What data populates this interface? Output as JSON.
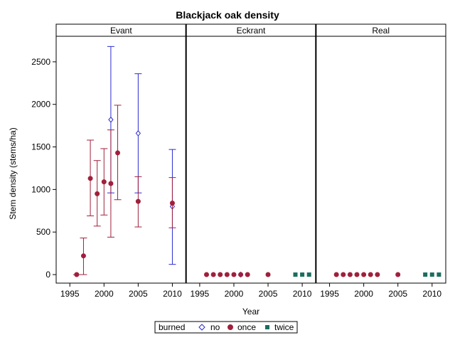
{
  "chart_data": {
    "type": "scatter",
    "title": "Blackjack oak density",
    "xlabel": "Year",
    "ylabel": "Stem density (stems/ha)",
    "xlim": [
      1993,
      2012
    ],
    "ylim": [
      -100,
      2800
    ],
    "x_ticks": [
      1995,
      2000,
      2005,
      2010
    ],
    "y_ticks": [
      0,
      500,
      1000,
      1500,
      2000,
      2500
    ],
    "grid": false,
    "legend_placement": "bottom-center",
    "legend_title": "burned",
    "panels": [
      "Evant",
      "Eckrant",
      "Real"
    ],
    "series": [
      {
        "name": "no",
        "marker": "diamond",
        "color": "#2b2bd1",
        "data": {
          "Evant": [
            {
              "x": 2001,
              "y": 1820,
              "low": 960,
              "high": 2680
            },
            {
              "x": 2005,
              "y": 1660,
              "low": 960,
              "high": 2360
            },
            {
              "x": 2010,
              "y": 800,
              "low": 120,
              "high": 1470
            }
          ],
          "Eckrant": [
            {
              "x": 2001,
              "y": 0
            }
          ],
          "Real": []
        }
      },
      {
        "name": "once",
        "marker": "circle",
        "color": "#a0203c",
        "data": {
          "Evant": [
            {
              "x": 1996,
              "y": 0,
              "low": 0,
              "high": 0
            },
            {
              "x": 1997,
              "y": 220,
              "low": 0,
              "high": 430
            },
            {
              "x": 1998,
              "y": 1130,
              "low": 690,
              "high": 1580
            },
            {
              "x": 1999,
              "y": 950,
              "low": 570,
              "high": 1340
            },
            {
              "x": 2000,
              "y": 1090,
              "low": 700,
              "high": 1480
            },
            {
              "x": 2001,
              "y": 1070,
              "low": 440,
              "high": 1700
            },
            {
              "x": 2002,
              "y": 1430,
              "low": 880,
              "high": 1990
            },
            {
              "x": 2005,
              "y": 860,
              "low": 560,
              "high": 1150
            },
            {
              "x": 2010,
              "y": 840,
              "low": 550,
              "high": 1140
            }
          ],
          "Eckrant": [
            {
              "x": 1996,
              "y": 0
            },
            {
              "x": 1997,
              "y": 0
            },
            {
              "x": 1998,
              "y": 0
            },
            {
              "x": 1999,
              "y": 0
            },
            {
              "x": 2000,
              "y": 0
            },
            {
              "x": 2001,
              "y": 0
            },
            {
              "x": 2002,
              "y": 0
            },
            {
              "x": 2005,
              "y": 0
            }
          ],
          "Real": [
            {
              "x": 1996,
              "y": 0
            },
            {
              "x": 1997,
              "y": 0
            },
            {
              "x": 1998,
              "y": 0
            },
            {
              "x": 1999,
              "y": 0
            },
            {
              "x": 2000,
              "y": 0
            },
            {
              "x": 2001,
              "y": 0
            },
            {
              "x": 2002,
              "y": 0
            },
            {
              "x": 2005,
              "y": 0
            }
          ]
        }
      },
      {
        "name": "twice",
        "marker": "square",
        "color": "#1a6e60",
        "data": {
          "Evant": [],
          "Eckrant": [
            {
              "x": 2009,
              "y": 0
            },
            {
              "x": 2010,
              "y": 0
            },
            {
              "x": 2011,
              "y": 0
            }
          ],
          "Real": [
            {
              "x": 2009,
              "y": 0
            },
            {
              "x": 2010,
              "y": 0
            },
            {
              "x": 2011,
              "y": 0
            }
          ]
        }
      }
    ]
  }
}
